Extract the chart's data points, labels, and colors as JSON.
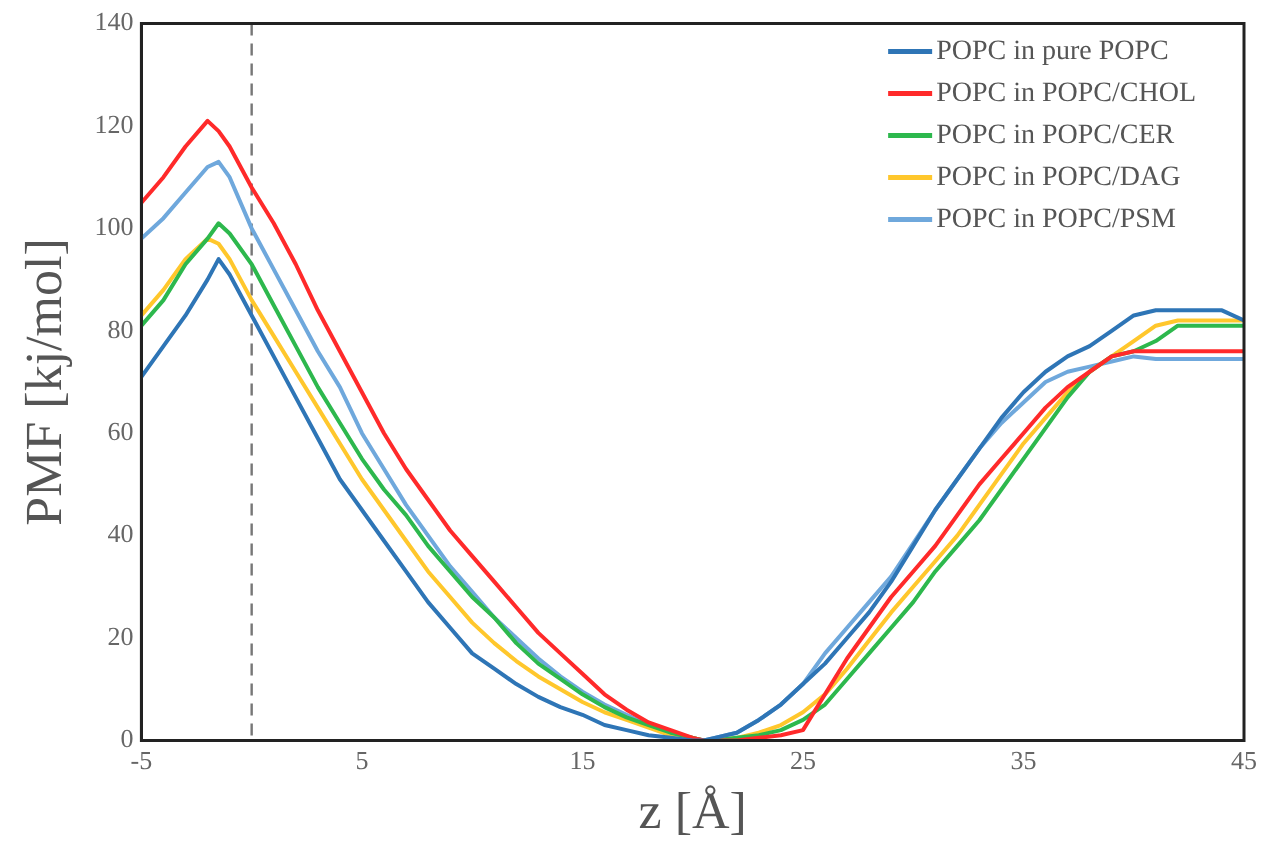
{
  "chart_data": {
    "type": "line",
    "xlabel": "z [Å]",
    "ylabel": "PMF [kj/mol]",
    "x": [
      -5,
      -4,
      -3,
      -2,
      -1.5,
      -1,
      0,
      1,
      2,
      3,
      4,
      5,
      6,
      7,
      8,
      9,
      10,
      11,
      12,
      13,
      14,
      15,
      16,
      17,
      18,
      19,
      20,
      20.5,
      21,
      22,
      23,
      24,
      25,
      26,
      27,
      28,
      29,
      30,
      31,
      32,
      33,
      34,
      35,
      36,
      37,
      38,
      39,
      40,
      41,
      42,
      43,
      44,
      45
    ],
    "series": [
      {
        "name": "POPC in pure POPC",
        "color": "#2e75b6",
        "values": [
          71,
          77,
          83,
          90,
          94,
          91,
          83,
          75,
          67,
          59,
          51,
          45,
          39,
          33,
          27,
          22,
          17,
          14,
          11,
          8.5,
          6.5,
          5,
          3,
          2,
          1,
          0.5,
          0,
          0,
          0.5,
          1.5,
          4,
          7,
          11,
          15,
          20,
          25,
          31,
          38,
          45,
          51,
          57,
          63,
          68,
          72,
          75,
          77,
          80,
          83,
          84,
          84,
          84,
          84,
          82
        ]
      },
      {
        "name": "POPC in POPC/CHOL",
        "color": "#ff2a2a",
        "values": [
          105,
          110,
          116,
          121,
          119,
          116,
          108,
          101,
          93,
          84,
          76,
          68,
          60,
          53,
          47,
          41,
          36,
          31,
          26,
          21,
          17,
          13,
          9,
          6,
          3.5,
          2,
          0.5,
          0,
          0,
          0,
          0.5,
          1,
          2,
          9,
          16,
          22,
          28,
          33,
          38,
          44,
          50,
          55,
          60,
          65,
          69,
          72,
          75,
          76,
          76,
          76,
          76,
          76,
          76
        ]
      },
      {
        "name": "POPC in POPC/CER",
        "color": "#2db84d",
        "values": [
          81,
          86,
          93,
          98,
          101,
          99,
          93,
          85,
          77,
          69,
          62,
          55,
          49,
          44,
          38,
          33,
          28,
          24,
          19,
          15,
          12,
          9,
          6.5,
          4.5,
          3,
          1.5,
          0.5,
          0,
          0,
          0.5,
          1,
          2,
          4,
          7,
          12,
          17,
          22,
          27,
          33,
          38,
          43,
          49,
          55,
          61,
          67,
          72,
          75,
          76,
          78,
          81,
          81,
          81,
          81
        ]
      },
      {
        "name": "POPC in POPC/DAG",
        "color": "#ffc72c",
        "values": [
          83,
          88,
          94,
          98,
          97,
          94,
          86,
          79,
          72,
          65,
          58,
          51,
          45,
          39,
          33,
          28,
          23,
          19,
          15.5,
          12.5,
          10,
          7.5,
          5.5,
          4,
          2.5,
          1,
          0.5,
          0,
          0,
          0.5,
          1.5,
          3,
          5.5,
          9,
          14,
          19.5,
          25,
          30,
          35,
          40,
          46,
          52,
          58,
          63,
          68,
          72,
          75,
          78,
          81,
          82,
          82,
          82,
          82
        ]
      },
      {
        "name": "POPC in POPC/PSM",
        "color": "#6fa8dc",
        "values": [
          98,
          102,
          107,
          112,
          113,
          110,
          100,
          92,
          84,
          76,
          69,
          60,
          53,
          46,
          40,
          34,
          29,
          24,
          20,
          16,
          12.5,
          9.5,
          7,
          5,
          3,
          1.5,
          0.5,
          0,
          0.5,
          1.5,
          4,
          7,
          11,
          17,
          22,
          27,
          32,
          38.5,
          45,
          51,
          57,
          62,
          66,
          70,
          72,
          73,
          74,
          75,
          74.5,
          74.5,
          74.5,
          74.5,
          74.5
        ]
      }
    ],
    "xlim": [
      -5,
      45
    ],
    "xticks": [
      -5,
      5,
      15,
      25,
      35,
      45
    ],
    "ylim": [
      0,
      140
    ],
    "yticks": [
      0,
      20,
      40,
      60,
      80,
      100,
      120,
      140
    ],
    "ref_lines": [
      {
        "axis": "x",
        "value": 0,
        "color": "#777777",
        "line_style": "dashed"
      }
    ],
    "grid": false,
    "legend": "top right",
    "marker": "none",
    "line_style": "solid"
  }
}
